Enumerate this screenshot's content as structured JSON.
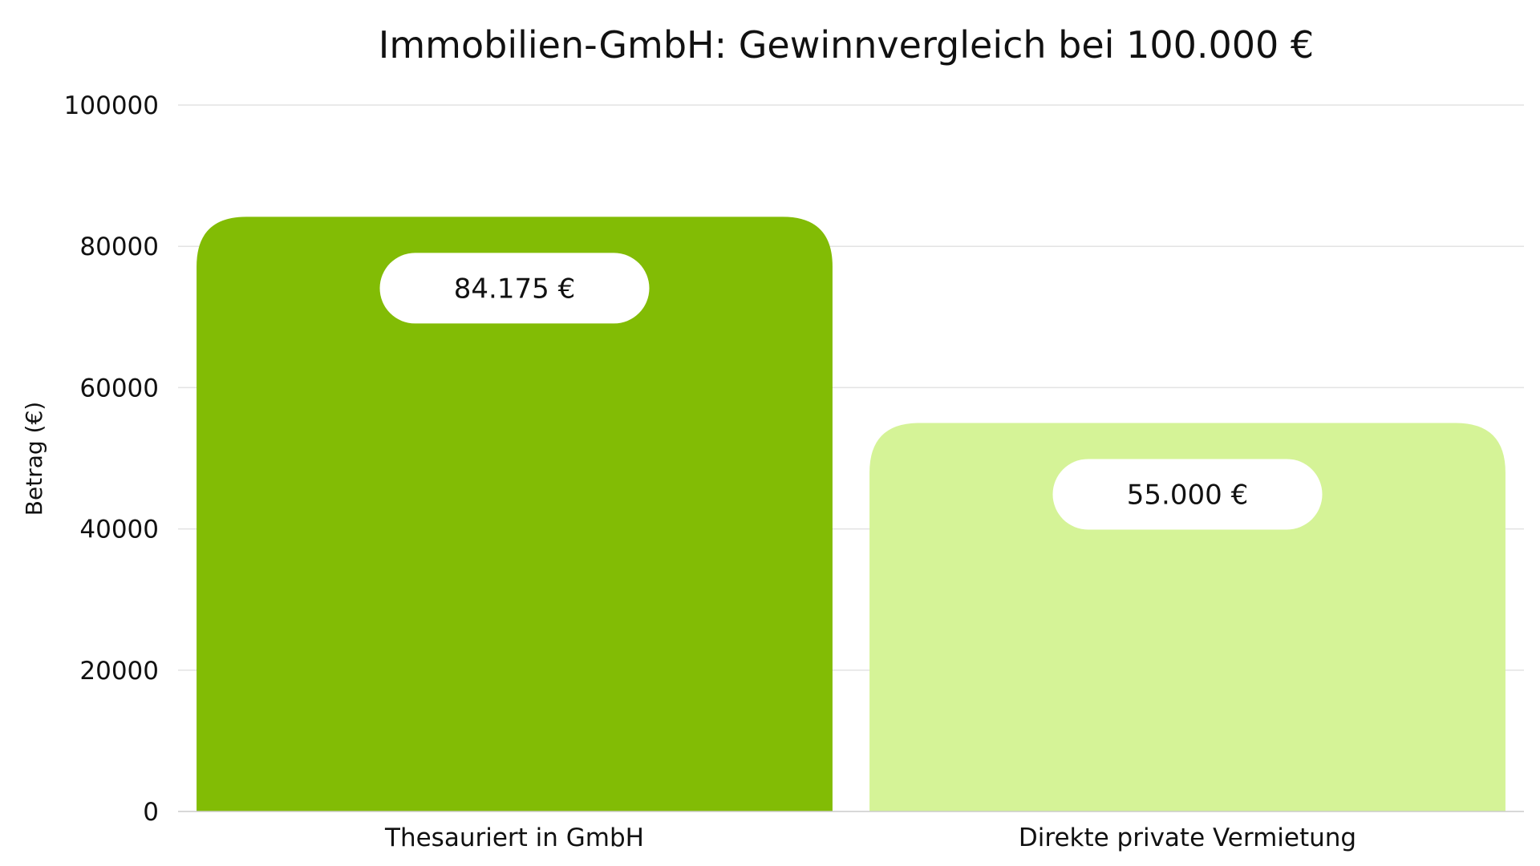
{
  "chart_data": {
    "type": "bar",
    "title": "Immobilien-GmbH: Gewinnvergleich bei 100.000 €",
    "xlabel": "",
    "ylabel": "Betrag (€)",
    "ylim": [
      0,
      100000
    ],
    "yticks": [
      "0",
      "20000",
      "40000",
      "60000",
      "80000",
      "100000"
    ],
    "categories": [
      "Thesauriert in GmbH",
      "Direkte private Vermietung"
    ],
    "values": [
      84175,
      55000
    ],
    "value_labels": [
      "84.175 €",
      "55.000 €"
    ],
    "colors": [
      "#82bc05",
      "#d5f397"
    ],
    "grid": true,
    "legend": "none"
  }
}
